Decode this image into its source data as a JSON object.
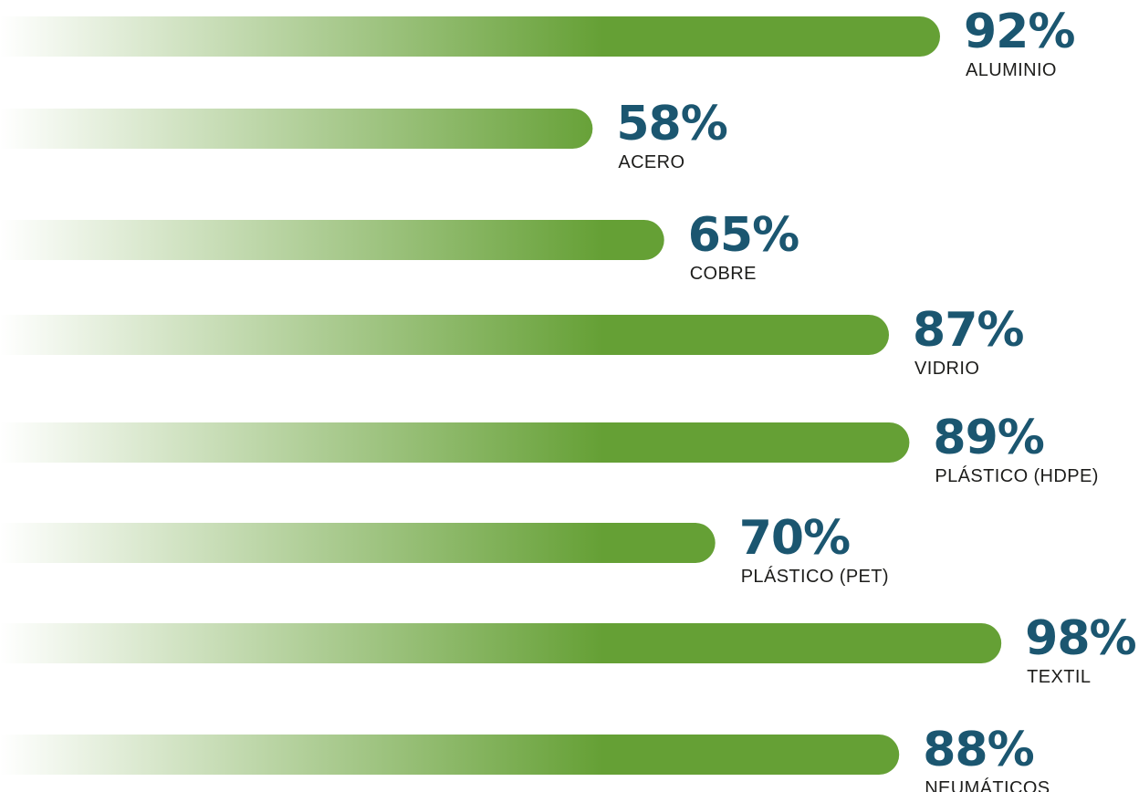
{
  "chart_data": {
    "type": "bar",
    "orientation": "horizontal",
    "categories": [
      "ALUMINIO",
      "ACERO",
      "COBRE",
      "VIDRIO",
      "PLÁSTICO (HDPE)",
      "PLÁSTICO (PET)",
      "TEXTIL",
      "NEUMÁTICOS"
    ],
    "values": [
      92,
      58,
      65,
      87,
      89,
      70,
      98,
      88
    ],
    "value_labels": [
      "92%",
      "58%",
      "65%",
      "87%",
      "89%",
      "70%",
      "98%",
      "88%"
    ],
    "unit": "%",
    "title": "",
    "xlabel": "",
    "ylabel": "",
    "xlim": [
      0,
      100
    ],
    "grid": false,
    "legend": "none"
  },
  "colors": {
    "bar_gradient_start": "#ffffff",
    "bar_gradient_end": "#65a035",
    "value_text": "#1b5670",
    "category_text": "#1d1d1b"
  }
}
